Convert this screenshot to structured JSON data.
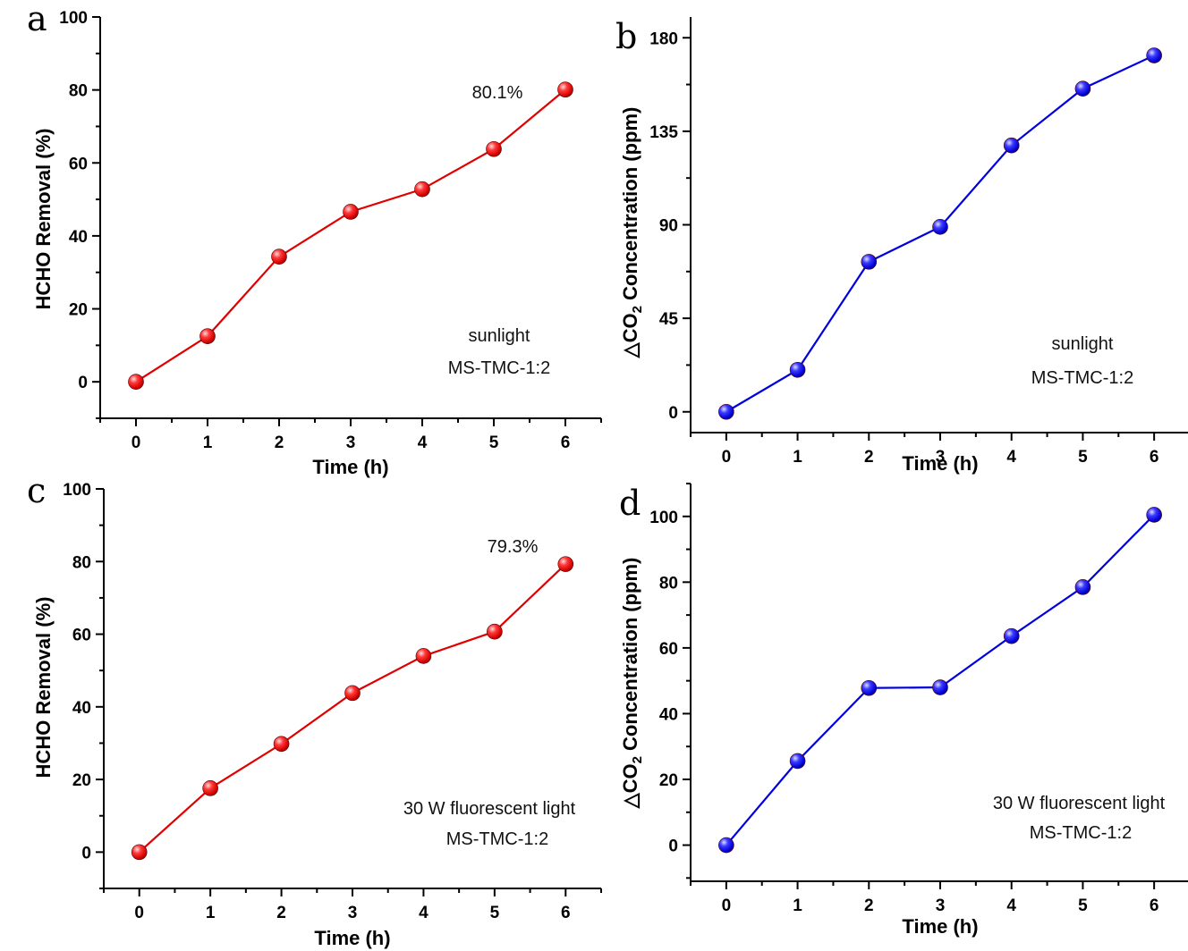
{
  "chart_data": [
    {
      "type": "line",
      "panel_label": "a",
      "x": [
        0,
        1,
        2,
        3,
        4,
        5,
        6
      ],
      "series": [
        {
          "values": [
            0,
            12.5,
            34.3,
            46.6,
            52.8,
            63.8,
            80.1
          ],
          "color": "#e00000"
        }
      ],
      "xticks": [
        "0",
        "1",
        "2",
        "3",
        "4",
        "5",
        "6"
      ],
      "yticks": [
        "0",
        "20",
        "40",
        "60",
        "80",
        "100"
      ],
      "xlabel": "Time (h)",
      "ylabel": "HCHO Removal (%)",
      "xlim": [
        -0.5,
        6.5
      ],
      "ylim": [
        -10,
        100
      ],
      "annotations": [
        "80.1%",
        "sunlight",
        "MS-TMC-1:2"
      ]
    },
    {
      "type": "line",
      "panel_label": "b",
      "x": [
        0,
        1,
        2,
        3,
        4,
        5,
        6
      ],
      "series": [
        {
          "values": [
            0,
            20.2,
            72.2,
            89,
            128.2,
            155.5,
            171.5
          ],
          "color": "#0000e0"
        }
      ],
      "xticks": [
        "0",
        "1",
        "2",
        "3",
        "4",
        "5",
        "6"
      ],
      "yticks": [
        "0",
        "45",
        "90",
        "135",
        "180"
      ],
      "xlabel": "Time (h)",
      "ylabel_prefix": "△CO",
      "ylabel_sub": "2",
      "ylabel_suffix": " Concentration (ppm)",
      "xlim": [
        -0.5,
        6.5
      ],
      "ylim": [
        -10,
        190
      ],
      "annotations": [
        "sunlight",
        "MS-TMC-1:2"
      ]
    },
    {
      "type": "line",
      "panel_label": "c",
      "x": [
        0,
        1,
        2,
        3,
        4,
        5,
        6
      ],
      "series": [
        {
          "values": [
            0,
            17.6,
            29.8,
            43.8,
            54,
            60.7,
            79.3
          ],
          "color": "#e00000"
        }
      ],
      "xticks": [
        "0",
        "1",
        "2",
        "3",
        "4",
        "5",
        "6"
      ],
      "yticks": [
        "0",
        "20",
        "40",
        "60",
        "80",
        "100"
      ],
      "xlabel": "Time (h)",
      "ylabel": "HCHO Removal (%)",
      "xlim": [
        -0.5,
        6.5
      ],
      "ylim": [
        -10,
        100
      ],
      "annotations": [
        "79.3%",
        "30 W fluorescent light",
        "MS-TMC-1:2"
      ]
    },
    {
      "type": "line",
      "panel_label": "d",
      "x": [
        0,
        1,
        2,
        3,
        4,
        5,
        6
      ],
      "series": [
        {
          "values": [
            0,
            25.6,
            47.8,
            48,
            63.6,
            78.5,
            100.5
          ],
          "color": "#0000e0"
        }
      ],
      "xticks": [
        "0",
        "1",
        "2",
        "3",
        "4",
        "5",
        "6"
      ],
      "yticks": [
        "0",
        "20",
        "40",
        "60",
        "80",
        "100"
      ],
      "xlabel": "Time (h)",
      "ylabel_prefix": "△CO",
      "ylabel_sub": "2",
      "ylabel_suffix": " Concentration (ppm)",
      "xlim": [
        -0.5,
        6.5
      ],
      "ylim": [
        -11,
        110
      ],
      "annotations": [
        "30 W fluorescent light",
        "MS-TMC-1:2"
      ]
    }
  ]
}
